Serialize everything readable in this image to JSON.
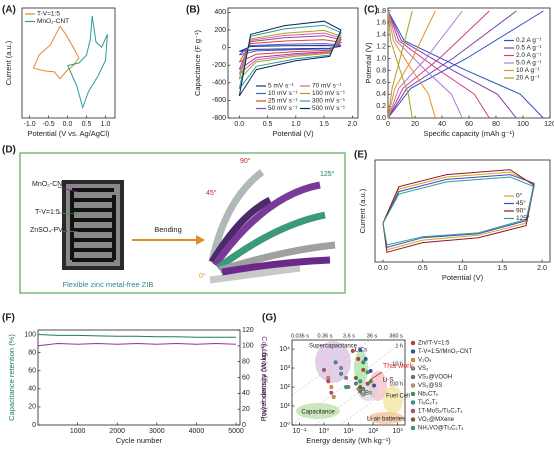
{
  "chart_data": [
    {
      "panel": "(A)",
      "type": "line",
      "xlabel": "Potential (V vs. Ag/AgCl)",
      "ylabel": "Current (a.u.)",
      "xlim": [
        -1.2,
        1.25
      ],
      "ylim": [
        -1,
        1.1
      ],
      "xticks": [
        {
          "value": -1,
          "label": "-1.0"
        },
        -0.5,
        {
          "value": 0,
          "label": "0.0"
        },
        0.5,
        {
          "value": 1,
          "label": "1.0"
        }
      ],
      "legend": "upper left",
      "series": [
        {
          "name": "T-V=1:5",
          "color": "#e08a2c",
          "x": [
            -0.9,
            -0.6,
            -0.35,
            -0.2,
            -0.05,
            0.15,
            0.3,
            0.15,
            -0.05,
            -0.2,
            -0.45,
            -0.75,
            -0.9
          ],
          "values": [
            -0.05,
            -0.1,
            -0.12,
            -0.25,
            -0.12,
            0.0,
            0.15,
            0.35,
            0.6,
            0.75,
            0.4,
            0.2,
            -0.05
          ]
        },
        {
          "name": "MnO₂-CNT",
          "color": "#2a9d9a",
          "x": [
            0,
            0.3,
            0.5,
            0.6,
            0.65,
            0.75,
            0.9,
            1.05,
            1.0,
            0.8,
            0.55,
            0.4,
            0.25,
            0.1,
            0
          ],
          "values": [
            0.0,
            0.05,
            0.2,
            0.5,
            0.95,
            0.45,
            0.35,
            0.6,
            0.1,
            -0.2,
            -0.5,
            -0.8,
            -0.4,
            -0.15,
            0.0
          ]
        }
      ]
    },
    {
      "panel": "(B)",
      "type": "line",
      "xlabel": "Potential (V)",
      "ylabel": "Capacitance (F g⁻¹)",
      "xlim": [
        -0.2,
        2.1
      ],
      "ylim": [
        -800,
        450
      ],
      "xticks": [
        {
          "value": 0,
          "label": "0.0"
        },
        0.5,
        {
          "value": 1,
          "label": "1.0"
        },
        1.5,
        {
          "value": 2,
          "label": "2.0"
        }
      ],
      "yticks": [
        -800,
        -600,
        -400,
        -200,
        0,
        200,
        400
      ],
      "legend": "lower right",
      "x": [
        0,
        0.3,
        1.0,
        1.6,
        1.8,
        1.5,
        0.8,
        0.2,
        0
      ],
      "series": [
        {
          "name": "5 mV s⁻¹",
          "color": "#1f2a8c",
          "values": [
            -44,
            -20,
            -12,
            -8,
            16,
            24,
            20,
            12,
            -44
          ]
        },
        {
          "name": "10 mV s⁻¹",
          "color": "#3b5fd9",
          "values": [
            -83,
            -38,
            -23,
            -15,
            30,
            45,
            38,
            23,
            -83
          ]
        },
        {
          "name": "25 mV s⁻¹",
          "color": "#e0442a",
          "values": [
            -165,
            -75,
            -45,
            -30,
            60,
            90,
            75,
            45,
            -165
          ]
        },
        {
          "name": "50 mV s⁻¹",
          "color": "#8e44ad",
          "values": [
            -248,
            -113,
            -68,
            -45,
            90,
            135,
            113,
            68,
            -248
          ]
        },
        {
          "name": "70 mV s⁻¹",
          "color": "#e05fa0",
          "values": [
            -303,
            -138,
            -83,
            -55,
            110,
            165,
            138,
            83,
            -303
          ]
        },
        {
          "name": "100 mV s⁻¹",
          "color": "#a8a020",
          "values": [
            -358,
            -163,
            -98,
            -65,
            130,
            195,
            163,
            98,
            -358
          ]
        },
        {
          "name": "300 mV s⁻¹",
          "color": "#2a9d9a",
          "values": [
            -468,
            -213,
            -128,
            -85,
            170,
            255,
            213,
            128,
            -468
          ]
        },
        {
          "name": "500 mV s⁻¹",
          "color": "#0b2a5a",
          "values": [
            -550,
            -250,
            -150,
            -100,
            200,
            300,
            250,
            150,
            -550
          ]
        }
      ]
    },
    {
      "panel": "(C)",
      "type": "line",
      "xlabel": "Specific capacity (mAh g⁻¹)",
      "ylabel": "Potential (V)",
      "xlim": [
        0,
        120
      ],
      "ylim": [
        0,
        1.85
      ],
      "xticks": [
        0,
        20,
        40,
        60,
        80,
        100,
        120
      ],
      "yticks": [
        {
          "value": 0,
          "label": "0.0"
        },
        0.2,
        0.4,
        0.6,
        0.8,
        {
          "value": 1,
          "label": "1.0"
        },
        1.2,
        1.4,
        1.6,
        1.8
      ],
      "legend": "right",
      "series": [
        {
          "name": "0.2 A g⁻¹",
          "color": "#2b4fc4",
          "x": [
            0,
            17,
            58,
            115,
            null,
            0,
            12,
            58,
            98,
            115
          ],
          "values": [
            0,
            0.5,
            1.0,
            1.8,
            null,
            1.8,
            1.3,
            0.8,
            0.4,
            0
          ]
        },
        {
          "name": "0.5 A g⁻¹",
          "color": "#7b3fa8",
          "x": [
            0,
            14,
            48,
            95,
            null,
            0,
            10,
            48,
            81,
            95
          ],
          "values": [
            0,
            0.5,
            1.0,
            1.8,
            null,
            1.8,
            1.3,
            0.8,
            0.4,
            0
          ]
        },
        {
          "name": "2.0 A g⁻¹",
          "color": "#d63a8a",
          "x": [
            0,
            11,
            38,
            75,
            null,
            0,
            8,
            38,
            64,
            75
          ],
          "values": [
            0,
            0.5,
            1.0,
            1.8,
            null,
            1.8,
            1.3,
            0.8,
            0.4,
            0
          ]
        },
        {
          "name": "5.0 A g⁻¹",
          "color": "#b07ad6",
          "x": [
            0,
            8,
            28,
            55,
            null,
            0,
            6,
            28,
            47,
            55
          ],
          "values": [
            0,
            0.5,
            1.0,
            1.8,
            null,
            1.8,
            1.3,
            0.8,
            0.4,
            0
          ]
        },
        {
          "name": "10 A g⁻¹",
          "color": "#e8902c",
          "x": [
            0,
            5,
            18,
            35,
            null,
            0,
            4,
            18,
            30,
            35
          ],
          "values": [
            0,
            0.5,
            1.0,
            1.8,
            null,
            1.8,
            1.3,
            0.8,
            0.4,
            0
          ]
        },
        {
          "name": "20 A g⁻¹",
          "color": "#a8a020",
          "x": [
            0,
            3,
            9,
            18,
            null,
            0,
            2,
            9,
            15,
            18
          ],
          "values": [
            0,
            0.5,
            1.0,
            1.8,
            null,
            1.8,
            1.3,
            0.8,
            0.4,
            0
          ]
        }
      ]
    },
    {
      "panel": "(E)",
      "type": "line",
      "xlabel": "Potential (V)",
      "ylabel": "Current (a.u.)",
      "xlim": [
        -0.1,
        2.1
      ],
      "ylim": [
        -1,
        1.1
      ],
      "xticks": [
        {
          "value": 0,
          "label": "0.0"
        },
        0.5,
        {
          "value": 1,
          "label": "1.0"
        },
        1.5,
        {
          "value": 2,
          "label": "2.0"
        }
      ],
      "legend": "right",
      "x": [
        0,
        0.05,
        0.5,
        1.2,
        1.8,
        1.9,
        1.6,
        0.8,
        0.2,
        0
      ],
      "series": [
        {
          "name": "0°",
          "color": "#e0a020",
          "values": [
            -0.2,
            -0.75,
            -0.55,
            -0.45,
            -0.2,
            0.6,
            0.85,
            0.75,
            0.5,
            -0.2
          ]
        },
        {
          "name": "45°",
          "color": "#3b4fb8",
          "values": [
            -0.2,
            -0.7,
            -0.5,
            -0.42,
            -0.15,
            0.62,
            0.8,
            0.7,
            0.45,
            -0.2
          ]
        },
        {
          "name": "90°",
          "color": "#8b1a2a",
          "values": [
            -0.2,
            -0.8,
            -0.6,
            -0.5,
            -0.25,
            0.58,
            0.9,
            0.8,
            0.55,
            -0.2
          ]
        },
        {
          "name": "125°",
          "color": "#2a9d9a",
          "values": [
            -0.2,
            -0.65,
            -0.48,
            -0.4,
            -0.12,
            0.55,
            0.75,
            0.65,
            0.4,
            -0.2
          ]
        }
      ]
    },
    {
      "panel": "(F)",
      "type": "line",
      "xlabel": "Cycle number",
      "ylabel": "Capacitance retention (%)",
      "y2label": "Coulombic efficiency (%)",
      "ylabel_color": "#1f7a6b",
      "y2label_color": "#8b3a9c",
      "xlim": [
        0,
        5100
      ],
      "ylim": [
        0,
        105
      ],
      "y2lim": [
        0,
        120
      ],
      "xticks": [
        1000,
        2000,
        3000,
        4000,
        5000
      ],
      "yticks": [
        0,
        20,
        40,
        60,
        80,
        100
      ],
      "y2ticks": [
        0,
        20,
        40,
        60,
        80,
        100,
        120
      ],
      "x": [
        0,
        500,
        1000,
        1500,
        2000,
        2500,
        3000,
        3500,
        4000,
        4500,
        5000
      ],
      "series": [
        {
          "color": "#1f7a6b",
          "values": [
            100,
            99,
            99,
            98.5,
            98,
            98,
            97.5,
            97.5,
            97,
            97,
            97
          ]
        },
        {
          "color": "#8b3a9c",
          "axis": "y2",
          "values": [
            100,
            103,
            102,
            103,
            102,
            103,
            102,
            103,
            102,
            103,
            102
          ]
        }
      ]
    },
    {
      "panel": "(G)",
      "type": "scatter",
      "xlabel": "Energy density (Wh kg⁻¹)",
      "ylabel": "Power density (W kg⁻¹)",
      "xscale": "log",
      "yscale": "log",
      "xlim": [
        0.05,
        2000
      ],
      "ylim": [
        1,
        30000
      ],
      "xticks": [
        {
          "value": 0.1,
          "label": "10⁻¹"
        },
        {
          "value": 1,
          "label": "10⁰"
        },
        {
          "value": 10,
          "label": "10¹"
        },
        {
          "value": 100,
          "label": "10²"
        },
        {
          "value": 1000,
          "label": "10³"
        }
      ],
      "yticks": [
        {
          "value": 1,
          "label": "10⁰"
        },
        {
          "value": 10,
          "label": "10¹"
        },
        {
          "value": 100,
          "label": "10²"
        },
        {
          "value": 1000,
          "label": "10³"
        },
        {
          "value": 10000,
          "label": "10⁴"
        }
      ],
      "legend": "outside right",
      "annotations": [
        "Supercapacitance",
        "Capacitance",
        "LICs",
        "Li-S",
        "LIBs",
        "Fuel Cell",
        "Li-air batteries",
        "This work",
        "0.036 s",
        "0.36 s",
        "3.6 s",
        "36 s",
        "360 s",
        "1 h",
        "10 h",
        "100 h"
      ],
      "series": [
        {
          "name": "Zn//T-V=1:5",
          "color": "#e0342a",
          "x": [
            15,
            25,
            40,
            60
          ],
          "values": [
            8000,
            3000,
            800,
            150
          ]
        },
        {
          "name": "T-V=1:5//MnO₂-CNT",
          "color": "#2b4fc4",
          "x": [
            30,
            50,
            80,
            110
          ],
          "values": [
            9000,
            3000,
            700,
            120
          ]
        },
        {
          "name": "V₂O₅",
          "color": "#e8902c",
          "x": [
            1.5,
            2,
            2.5
          ],
          "values": [
            300,
            100,
            30
          ]
        },
        {
          "name": "VS₂",
          "color": "#8a8a8a",
          "x": [
            5,
            8,
            10
          ],
          "values": [
            1000,
            300,
            100
          ]
        },
        {
          "name": "VS₂@VOOH",
          "color": "#5a7aa0",
          "x": [
            20,
            30
          ],
          "values": [
            150,
            60
          ]
        },
        {
          "name": "VS₂@SS",
          "color": "#c0a060",
          "x": [
            25,
            40
          ],
          "values": [
            80,
            40
          ]
        },
        {
          "name": "Nb₂CTₓ",
          "color": "#3aa040",
          "x": [
            40,
            60,
            80
          ],
          "values": [
            2000,
            600,
            200
          ]
        },
        {
          "name": "Ti₃C₂Tₓ",
          "color": "#20a0a0",
          "x": [
            3,
            5,
            8
          ],
          "values": [
            2000,
            500,
            100
          ]
        },
        {
          "name": "1T-MoS₂/Ti₃C₂Tₓ",
          "color": "#d04080",
          "x": [
            1,
            1.5,
            2
          ],
          "values": [
            800,
            200,
            50
          ]
        },
        {
          "name": "VO₂@MXene",
          "color": "#8b5a2b",
          "x": [
            20,
            30
          ],
          "values": [
            300,
            100
          ]
        },
        {
          "name": "NH₄VO@Ti₃C₂Tₓ",
          "color": "#4a9a8a",
          "x": [
            30,
            40
          ],
          "values": [
            200,
            80
          ]
        }
      ]
    }
  ],
  "diagram": {
    "panel": "(D)",
    "labels": [
      "MnO₂-CNT",
      "T-V=1:5",
      "ZnSO₄-PVA"
    ],
    "arrow": "Bending",
    "caption": "Flexible zinc metal-free ZIB",
    "angles": [
      "90°",
      "45°",
      "125°",
      "0°"
    ]
  }
}
